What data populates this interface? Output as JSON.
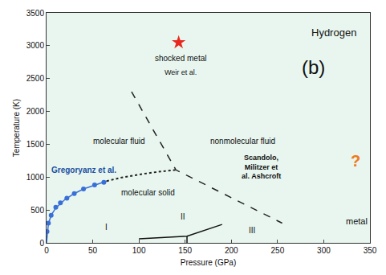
{
  "chart_data": {
    "type": "scatter",
    "x_label": "Pressure (GPa)",
    "y_label": "Temperature (K)",
    "xlim": [
      0,
      350
    ],
    "xticks": [
      0,
      50,
      100,
      150,
      200,
      250,
      300,
      350
    ],
    "ylim": [
      0,
      3500
    ],
    "yticks": [
      0,
      500,
      1000,
      1500,
      2000,
      2500,
      3000,
      3500
    ],
    "grid": false,
    "series": [
      {
        "type": "scatter",
        "marker": "circle",
        "line_style": "none",
        "color": "#3a6fd8",
        "x": [
          0.5,
          2,
          5,
          10,
          15,
          22,
          30,
          40,
          52,
          62
        ],
        "values": [
          170,
          300,
          420,
          540,
          610,
          680,
          750,
          820,
          880,
          920
        ]
      },
      {
        "type": "line",
        "marker": "none",
        "line_style": "solid",
        "color": "#3a6fd8",
        "x": [
          0,
          2,
          5,
          10,
          20,
          30,
          40,
          50,
          60,
          65
        ],
        "values": [
          0,
          290,
          420,
          530,
          660,
          750,
          820,
          870,
          920,
          940
        ]
      },
      {
        "type": "line",
        "marker": "none",
        "line_style": "dotted",
        "color": "#222222",
        "x": [
          65,
          80,
          100,
          120,
          140
        ],
        "values": [
          940,
          990,
          1040,
          1080,
          1110
        ]
      },
      {
        "type": "line",
        "marker": "none",
        "line_style": "dashed",
        "color": "#222222",
        "x": [
          92,
          140,
          255
        ],
        "values": [
          2300,
          1110,
          300
        ]
      },
      {
        "type": "line",
        "marker": "none",
        "line_style": "solid",
        "color": "#111111",
        "x": [
          100,
          152,
          190,
          null,
          152,
          152
        ],
        "values": [
          60,
          100,
          280,
          null,
          0,
          100
        ]
      },
      {
        "type": "scatter",
        "marker": "star",
        "line_style": "none",
        "color": "#e8281e",
        "x": [
          143
        ],
        "values": [
          3050
        ]
      }
    ],
    "annotations": [
      {
        "text": "Hydrogen",
        "x": 311,
        "y": 3200,
        "color": "#111111"
      },
      {
        "text": "(b)",
        "x": 289,
        "y": 2680,
        "color": "#111111"
      },
      {
        "text": "shocked metal",
        "x": 145,
        "y": 2810,
        "color": "#111111"
      },
      {
        "text": "Weir et al.",
        "x": 145,
        "y": 2590,
        "color": "#111111"
      },
      {
        "text": "molecular fluid",
        "x": 78,
        "y": 1550,
        "color": "#111111"
      },
      {
        "text": "nonmolecular fluid",
        "x": 212,
        "y": 1550,
        "color": "#111111"
      },
      {
        "text": "Gregoryanz et al.",
        "x": 40,
        "y": 1110,
        "color": "#1a4fa0"
      },
      {
        "text": "molecular solid",
        "x": 110,
        "y": 760,
        "color": "#111111"
      },
      {
        "text": [
          "Scandolo,",
          "Militzer et",
          "al. Ashcroft"
        ],
        "x": 232,
        "y": 1160,
        "color": "#111111"
      },
      {
        "text": "?",
        "x": 334,
        "y": 1250,
        "color": "#f07a1c"
      },
      {
        "text": "metal",
        "x": 336,
        "y": 330,
        "color": "#111111"
      },
      {
        "text": "I",
        "x": 65,
        "y": 240,
        "color": "#111111"
      },
      {
        "text": "II",
        "x": 148,
        "y": 400,
        "color": "#111111"
      },
      {
        "text": "III",
        "x": 222,
        "y": 190,
        "color": "#111111"
      }
    ]
  }
}
